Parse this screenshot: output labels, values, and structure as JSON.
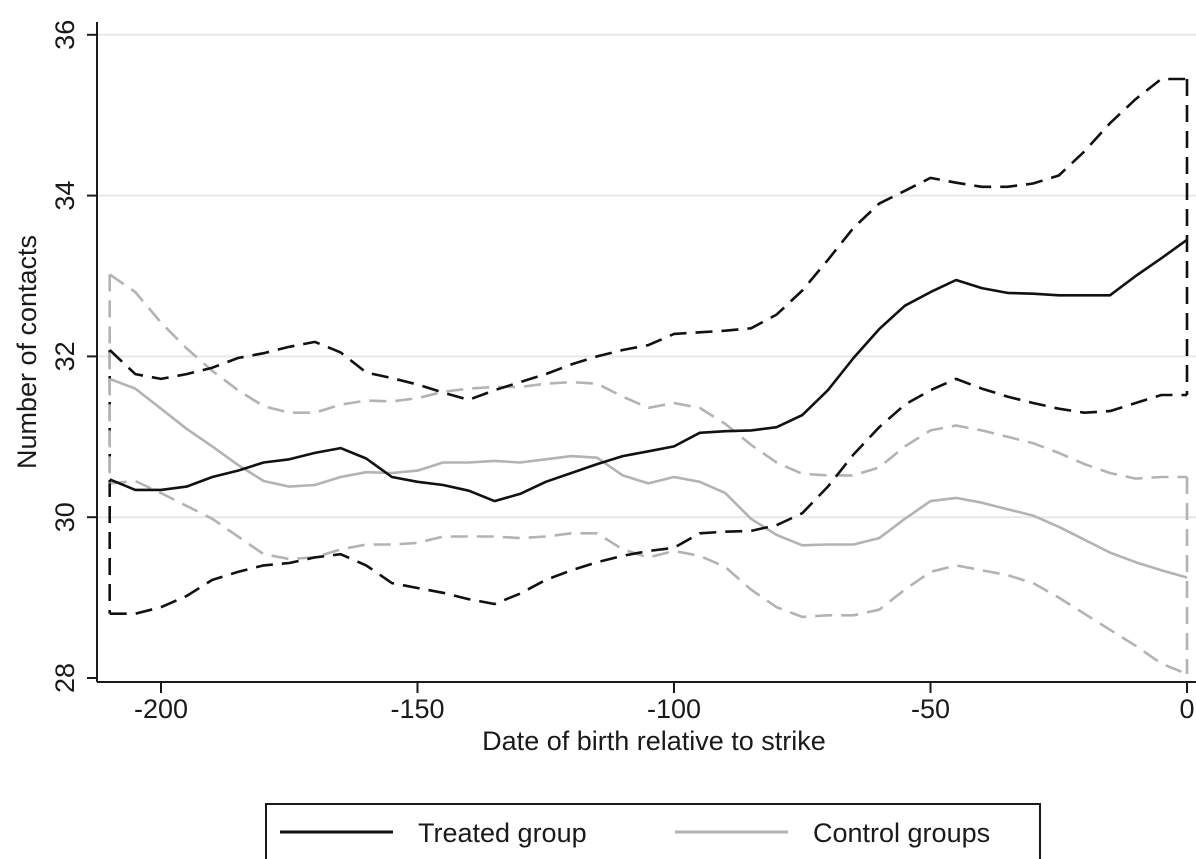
{
  "chart_data": {
    "type": "line",
    "title": "",
    "xlabel": "Date of birth relative to strike",
    "ylabel": "Number of contacts",
    "xlim": [
      -212,
      0
    ],
    "ylim": [
      28,
      36
    ],
    "x_ticks": [
      -200,
      -150,
      -100,
      -50,
      0
    ],
    "x_tick_labels": [
      "-200",
      "-150",
      "-100",
      "-50",
      "0"
    ],
    "y_ticks": [
      28,
      30,
      32,
      34,
      36
    ],
    "y_tick_labels": [
      "28",
      "30",
      "32",
      "34",
      "36"
    ],
    "grid": "horizontal",
    "legend": {
      "placement": "bottom",
      "entries": [
        "Treated group",
        "Control groups"
      ]
    },
    "colors": {
      "treated": "#111111",
      "control": "#b3b3b3",
      "grid": "#e8e8e8",
      "axis": "#1a1a1a"
    },
    "series": [
      {
        "name": "Treated group",
        "group": "treated",
        "style": "solid",
        "x": [
          -210,
          -205,
          -200,
          -195,
          -190,
          -185,
          -180,
          -175,
          -170,
          -165,
          -160,
          -155,
          -150,
          -145,
          -140,
          -135,
          -130,
          -125,
          -120,
          -115,
          -110,
          -105,
          -100,
          -95,
          -90,
          -85,
          -80,
          -75,
          -70,
          -65,
          -60,
          -55,
          -50,
          -45,
          -40,
          -35,
          -30,
          -25,
          -20,
          -15,
          -10,
          -5,
          0
        ],
        "y": [
          30.47,
          30.34,
          30.34,
          30.38,
          30.5,
          30.58,
          30.68,
          30.72,
          30.8,
          30.86,
          30.73,
          30.5,
          30.44,
          30.4,
          30.33,
          30.2,
          30.29,
          30.44,
          30.55,
          30.66,
          30.76,
          30.82,
          30.88,
          31.05,
          31.07,
          31.08,
          31.12,
          31.27,
          31.58,
          31.98,
          32.34,
          32.63,
          32.8,
          32.95,
          32.85,
          32.79,
          32.78,
          32.76,
          32.76,
          32.76,
          33.0,
          33.22,
          33.45
        ]
      },
      {
        "name": "",
        "group": "treated",
        "style": "dashed",
        "closed": true,
        "x": [
          -210,
          -205,
          -200,
          -195,
          -190,
          -185,
          -180,
          -175,
          -170,
          -165,
          -160,
          -155,
          -150,
          -145,
          -140,
          -135,
          -130,
          -125,
          -120,
          -115,
          -110,
          -105,
          -100,
          -95,
          -90,
          -85,
          -80,
          -75,
          -70,
          -65,
          -60,
          -55,
          -50,
          -45,
          -40,
          -35,
          -30,
          -25,
          -20,
          -15,
          -10,
          -5,
          0
        ],
        "y": [
          32.08,
          31.78,
          31.72,
          31.78,
          31.86,
          31.98,
          32.04,
          32.12,
          32.18,
          32.05,
          31.8,
          31.73,
          31.65,
          31.55,
          31.46,
          31.58,
          31.68,
          31.78,
          31.9,
          32.0,
          32.08,
          32.14,
          32.28,
          32.3,
          32.32,
          32.35,
          32.52,
          32.82,
          33.2,
          33.6,
          33.9,
          34.06,
          34.22,
          34.16,
          34.11,
          34.11,
          34.15,
          34.25,
          34.55,
          34.9,
          35.2,
          35.45,
          35.45
        ]
      },
      {
        "name": "",
        "group": "treated",
        "style": "dashed",
        "closed": true,
        "x": [
          -210,
          -205,
          -200,
          -195,
          -190,
          -185,
          -180,
          -175,
          -170,
          -165,
          -160,
          -155,
          -150,
          -145,
          -140,
          -135,
          -130,
          -125,
          -120,
          -115,
          -110,
          -105,
          -100,
          -95,
          -90,
          -85,
          -80,
          -75,
          -70,
          -65,
          -60,
          -55,
          -50,
          -45,
          -40,
          -35,
          -30,
          -25,
          -20,
          -15,
          -10,
          -5,
          0
        ],
        "y": [
          28.8,
          28.8,
          28.88,
          29.02,
          29.22,
          29.32,
          29.4,
          29.43,
          29.5,
          29.54,
          29.4,
          29.18,
          29.12,
          29.06,
          28.98,
          28.92,
          29.05,
          29.22,
          29.34,
          29.44,
          29.52,
          29.58,
          29.62,
          29.8,
          29.82,
          29.83,
          29.9,
          30.05,
          30.38,
          30.78,
          31.12,
          31.4,
          31.58,
          31.72,
          31.6,
          31.5,
          31.42,
          31.35,
          31.3,
          31.32,
          31.42,
          31.52,
          31.52
        ]
      },
      {
        "name": "Control groups",
        "group": "control",
        "style": "solid",
        "x": [
          -210,
          -205,
          -200,
          -195,
          -190,
          -185,
          -180,
          -175,
          -170,
          -165,
          -160,
          -155,
          -150,
          -145,
          -140,
          -135,
          -130,
          -125,
          -120,
          -115,
          -110,
          -105,
          -100,
          -95,
          -90,
          -85,
          -80,
          -75,
          -70,
          -65,
          -60,
          -55,
          -50,
          -45,
          -40,
          -35,
          -30,
          -25,
          -20,
          -15,
          -10,
          -5,
          0
        ],
        "y": [
          31.72,
          31.6,
          31.35,
          31.1,
          30.88,
          30.65,
          30.45,
          30.38,
          30.4,
          30.5,
          30.56,
          30.55,
          30.58,
          30.68,
          30.68,
          30.7,
          30.68,
          30.72,
          30.76,
          30.74,
          30.52,
          30.42,
          30.5,
          30.44,
          30.3,
          29.98,
          29.78,
          29.65,
          29.66,
          29.66,
          29.74,
          29.98,
          30.2,
          30.24,
          30.18,
          30.1,
          30.02,
          29.88,
          29.72,
          29.56,
          29.44,
          29.34,
          29.25
        ]
      },
      {
        "name": "",
        "group": "control",
        "style": "dashed",
        "closed": true,
        "x": [
          -210,
          -205,
          -200,
          -195,
          -190,
          -185,
          -180,
          -175,
          -170,
          -165,
          -160,
          -155,
          -150,
          -145,
          -140,
          -135,
          -130,
          -125,
          -120,
          -115,
          -110,
          -105,
          -100,
          -95,
          -90,
          -85,
          -80,
          -75,
          -70,
          -65,
          -60,
          -55,
          -50,
          -45,
          -40,
          -35,
          -30,
          -25,
          -20,
          -15,
          -10,
          -5,
          0
        ],
        "y": [
          33.02,
          32.8,
          32.42,
          32.1,
          31.82,
          31.58,
          31.38,
          31.3,
          31.3,
          31.4,
          31.45,
          31.44,
          31.48,
          31.56,
          31.6,
          31.62,
          31.62,
          31.66,
          31.68,
          31.66,
          31.5,
          31.36,
          31.42,
          31.36,
          31.16,
          30.9,
          30.68,
          30.54,
          30.52,
          30.52,
          30.62,
          30.88,
          31.08,
          31.14,
          31.08,
          31.0,
          30.92,
          30.8,
          30.66,
          30.55,
          30.48,
          30.5,
          30.5
        ]
      },
      {
        "name": "",
        "group": "control",
        "style": "dashed",
        "closed": true,
        "x": [
          -210,
          -205,
          -200,
          -195,
          -190,
          -185,
          -180,
          -175,
          -170,
          -165,
          -160,
          -155,
          -150,
          -145,
          -140,
          -135,
          -130,
          -125,
          -120,
          -115,
          -110,
          -105,
          -100,
          -95,
          -90,
          -85,
          -80,
          -75,
          -70,
          -65,
          -60,
          -55,
          -50,
          -45,
          -40,
          -35,
          -30,
          -25,
          -20,
          -15,
          -10,
          -5,
          0
        ],
        "y": [
          30.42,
          30.45,
          30.3,
          30.14,
          29.98,
          29.76,
          29.54,
          29.48,
          29.5,
          29.6,
          29.66,
          29.66,
          29.68,
          29.76,
          29.76,
          29.76,
          29.74,
          29.76,
          29.8,
          29.8,
          29.6,
          29.5,
          29.58,
          29.52,
          29.38,
          29.1,
          28.88,
          28.76,
          28.78,
          28.78,
          28.85,
          29.1,
          29.32,
          29.4,
          29.34,
          29.28,
          29.18,
          29.0,
          28.8,
          28.6,
          28.4,
          28.18,
          28.05
        ]
      }
    ]
  }
}
